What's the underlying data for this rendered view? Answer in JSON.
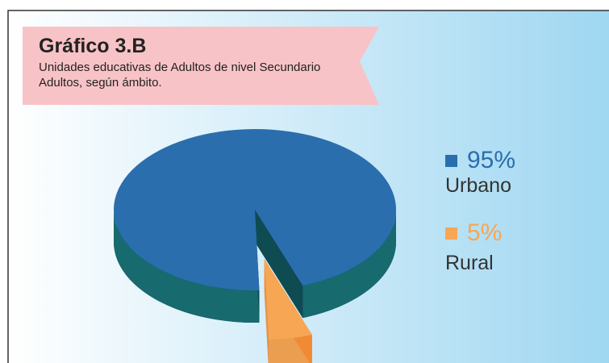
{
  "chart_data": {
    "type": "pie",
    "title": "Gráfico 3.B",
    "subtitle": "Unidades educativas de Adultos de nivel Secundario Adultos, según ámbito.",
    "categories": [
      "Urbano",
      "Rural"
    ],
    "values": [
      95,
      5
    ],
    "value_labels": [
      "95%",
      "5%"
    ],
    "colors": [
      "#2a6ead",
      "#f7a654"
    ]
  }
}
